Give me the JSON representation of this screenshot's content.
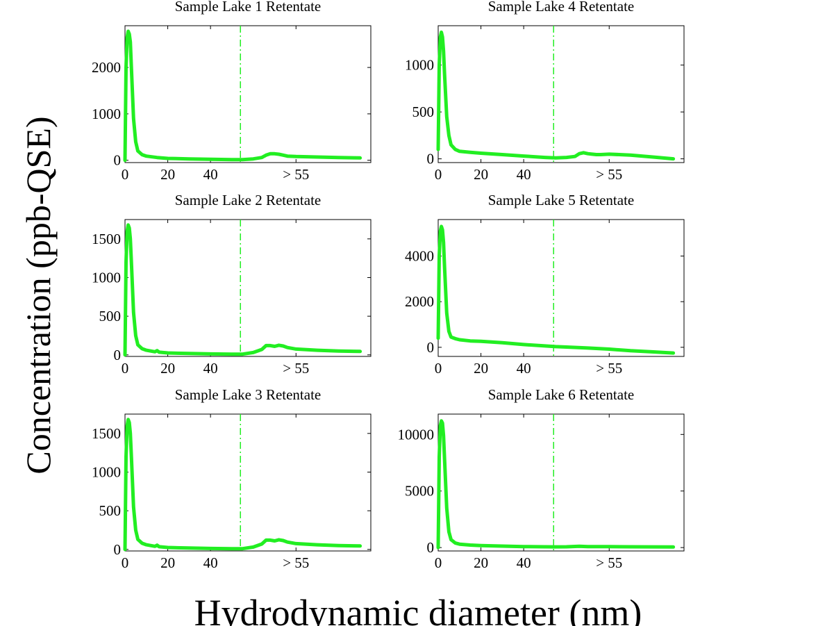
{
  "colors": {
    "series": "#22ee22",
    "axis": "#000000",
    "background": "#ffffff"
  },
  "figure": {
    "ylabel": "Concentration (ppb-QSE)",
    "xlabel": "Hydrodynamic diameter (nm)"
  },
  "chart_data": [
    {
      "type": "line",
      "title": "Sample Lake 1 Retentate",
      "xticks": [
        "0",
        "20",
        "40",
        "> 55"
      ],
      "yticks": [
        0,
        1000,
        2000
      ],
      "ylim": [
        -50,
        2900
      ],
      "cutoff_x": 54,
      "x": [
        0,
        0.5,
        1,
        1.5,
        2,
        2.5,
        3,
        4,
        5,
        6,
        8,
        10,
        15,
        20,
        30,
        40,
        50,
        55,
        60,
        64,
        66,
        68,
        70,
        72,
        74,
        76,
        80,
        90,
        100,
        110
      ],
      "y": [
        0,
        2000,
        2650,
        2780,
        2720,
        2550,
        2000,
        900,
        400,
        200,
        120,
        90,
        60,
        40,
        30,
        20,
        15,
        15,
        30,
        60,
        110,
        140,
        140,
        130,
        110,
        90,
        80,
        70,
        60,
        50
      ]
    },
    {
      "type": "line",
      "title": "Sample Lake 2 Retentate",
      "xticks": [
        "0",
        "20",
        "40",
        "> 55"
      ],
      "yticks": [
        0,
        500,
        1000,
        1500
      ],
      "ylim": [
        -20,
        1750
      ],
      "cutoff_x": 54,
      "x": [
        0,
        0.5,
        1,
        1.5,
        2,
        2.5,
        3,
        4,
        5,
        6,
        8,
        10,
        14,
        15,
        16,
        20,
        30,
        40,
        50,
        55,
        60,
        64,
        66,
        68,
        70,
        72,
        74,
        76,
        80,
        90,
        100,
        110
      ],
      "y": [
        0,
        1200,
        1600,
        1680,
        1640,
        1500,
        1200,
        550,
        250,
        130,
        80,
        60,
        40,
        55,
        35,
        25,
        18,
        12,
        10,
        10,
        30,
        70,
        120,
        120,
        110,
        125,
        115,
        95,
        75,
        60,
        50,
        45
      ]
    },
    {
      "type": "line",
      "title": "Sample Lake 3 Retentate",
      "xticks": [
        "0",
        "20",
        "40",
        "> 55"
      ],
      "yticks": [
        0,
        500,
        1000,
        1500
      ],
      "ylim": [
        -20,
        1750
      ],
      "cutoff_x": 54,
      "x": [
        0,
        0.5,
        1,
        1.5,
        2,
        2.5,
        3,
        4,
        5,
        6,
        8,
        10,
        14,
        15,
        16,
        20,
        30,
        40,
        50,
        55,
        60,
        64,
        66,
        68,
        70,
        72,
        74,
        76,
        80,
        90,
        100,
        110
      ],
      "y": [
        0,
        1200,
        1600,
        1680,
        1640,
        1500,
        1200,
        550,
        250,
        130,
        80,
        60,
        40,
        55,
        35,
        25,
        18,
        12,
        10,
        10,
        30,
        70,
        120,
        120,
        110,
        125,
        115,
        95,
        75,
        60,
        50,
        45
      ]
    },
    {
      "type": "line",
      "title": "Sample Lake 4 Retentate",
      "xticks": [
        "0",
        "20",
        "40",
        "> 55"
      ],
      "yticks": [
        0,
        500,
        1000
      ],
      "ylim": [
        -40,
        1420
      ],
      "cutoff_x": 54,
      "x": [
        0,
        0.5,
        1,
        1.5,
        2,
        2.5,
        3,
        4,
        5,
        6,
        8,
        10,
        15,
        20,
        30,
        40,
        50,
        55,
        60,
        64,
        66,
        68,
        70,
        72,
        74,
        76,
        80,
        90,
        100,
        110
      ],
      "y": [
        100,
        1000,
        1300,
        1350,
        1300,
        1150,
        900,
        450,
        250,
        150,
        100,
        80,
        70,
        60,
        45,
        30,
        15,
        10,
        15,
        25,
        55,
        65,
        55,
        50,
        45,
        45,
        50,
        40,
        20,
        0
      ]
    },
    {
      "type": "line",
      "title": "Sample Lake 5 Retentate",
      "xticks": [
        "0",
        "20",
        "40",
        "> 55"
      ],
      "yticks": [
        0,
        2000,
        4000
      ],
      "ylim": [
        -400,
        5600
      ],
      "cutoff_x": 54,
      "x": [
        0,
        0.5,
        1,
        1.5,
        2,
        2.5,
        3,
        4,
        5,
        6,
        8,
        10,
        15,
        20,
        30,
        40,
        50,
        55,
        60,
        70,
        80,
        90,
        100,
        110
      ],
      "y": [
        400,
        4000,
        5100,
        5300,
        5150,
        4600,
        3500,
        1500,
        700,
        450,
        380,
        330,
        280,
        260,
        200,
        120,
        60,
        30,
        10,
        -30,
        -80,
        -150,
        -200,
        -250
      ]
    },
    {
      "type": "line",
      "title": "Sample Lake 6 Retentate",
      "xticks": [
        "0",
        "20",
        "40",
        "> 55"
      ],
      "yticks": [
        0,
        5000,
        10000
      ],
      "ylim": [
        -300,
        11800
      ],
      "cutoff_x": 54,
      "x": [
        0,
        0.5,
        1,
        1.5,
        2,
        2.5,
        3,
        4,
        5,
        6,
        8,
        10,
        15,
        20,
        30,
        40,
        50,
        55,
        60,
        66,
        70,
        80,
        90,
        100,
        110
      ],
      "y": [
        0,
        8000,
        10800,
        11200,
        11000,
        9900,
        7800,
        3500,
        1400,
        700,
        400,
        300,
        220,
        180,
        130,
        90,
        70,
        60,
        70,
        110,
        90,
        80,
        70,
        60,
        50
      ]
    }
  ]
}
